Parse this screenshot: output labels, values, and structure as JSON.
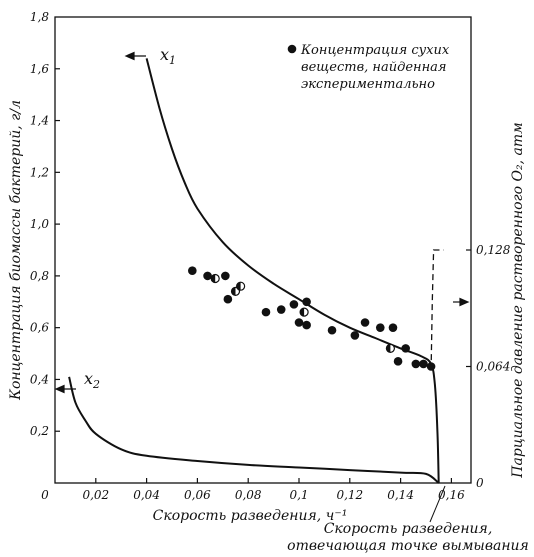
{
  "chart_data": {
    "type": "scatter",
    "xlabel": "Скорость разведения, ч⁻¹",
    "ylabel": "Концентрация биомассы бактерий, г/л",
    "ylabel_right": "Парциальное давление растворенного O₂, атм",
    "xlim": [
      0,
      0.16
    ],
    "ylim": [
      0,
      1.8
    ],
    "ylim_right": [
      0,
      0.256
    ],
    "x_ticks": [
      "0",
      "0,02",
      "0,04",
      "0,06",
      "0,08",
      "0,1",
      "0,12",
      "0,14",
      "0,16"
    ],
    "y_ticks": [
      "0,2",
      "0,4",
      "0,6",
      "0,8",
      "1,0",
      "1,2",
      "1,4",
      "1,6",
      "1,8"
    ],
    "y_ticks_right": [
      "0",
      "0,064",
      "0,128"
    ],
    "legend": {
      "label_lines": [
        "Концентрация сухих",
        "веществ, найденная",
        "экспериментально"
      ]
    },
    "annotation_lines": [
      "Скорость разведения,",
      "отвечающая точке вымывания"
    ],
    "series": [
      {
        "name": "x₁",
        "values": [
          [
            0.04,
            1.64
          ],
          [
            0.045,
            1.45
          ],
          [
            0.05,
            1.29
          ],
          [
            0.055,
            1.16
          ],
          [
            0.06,
            1.06
          ],
          [
            0.07,
            0.93
          ],
          [
            0.08,
            0.84
          ],
          [
            0.09,
            0.77
          ],
          [
            0.1,
            0.71
          ],
          [
            0.11,
            0.65
          ],
          [
            0.12,
            0.6
          ],
          [
            0.13,
            0.56
          ],
          [
            0.14,
            0.52
          ],
          [
            0.148,
            0.49
          ],
          [
            0.152,
            0.46
          ],
          [
            0.1535,
            0.38
          ],
          [
            0.1545,
            0.2
          ],
          [
            0.155,
            0.0
          ]
        ]
      },
      {
        "name": "x₂",
        "values": [
          [
            0.0095,
            0.41
          ],
          [
            0.012,
            0.31
          ],
          [
            0.016,
            0.24
          ],
          [
            0.02,
            0.19
          ],
          [
            0.03,
            0.13
          ],
          [
            0.04,
            0.105
          ],
          [
            0.06,
            0.085
          ],
          [
            0.08,
            0.07
          ],
          [
            0.1,
            0.06
          ],
          [
            0.12,
            0.05
          ],
          [
            0.14,
            0.04
          ],
          [
            0.15,
            0.035
          ],
          [
            0.155,
            0.0
          ]
        ]
      },
      {
        "name": "O₂",
        "values": [
          [
            0.152,
            0.062
          ],
          [
            0.1525,
            0.1
          ],
          [
            0.153,
            0.128
          ],
          [
            0.157,
            0.128
          ]
        ]
      }
    ],
    "points": [
      {
        "x": 0.058,
        "y": 0.82,
        "fill": "filled"
      },
      {
        "x": 0.064,
        "y": 0.8,
        "fill": "filled"
      },
      {
        "x": 0.067,
        "y": 0.79,
        "fill": "half"
      },
      {
        "x": 0.071,
        "y": 0.8,
        "fill": "filled"
      },
      {
        "x": 0.072,
        "y": 0.71,
        "fill": "filled"
      },
      {
        "x": 0.075,
        "y": 0.74,
        "fill": "half"
      },
      {
        "x": 0.077,
        "y": 0.76,
        "fill": "half"
      },
      {
        "x": 0.087,
        "y": 0.66,
        "fill": "filled"
      },
      {
        "x": 0.093,
        "y": 0.67,
        "fill": "filled"
      },
      {
        "x": 0.098,
        "y": 0.69,
        "fill": "filled"
      },
      {
        "x": 0.1,
        "y": 0.62,
        "fill": "filled"
      },
      {
        "x": 0.102,
        "y": 0.66,
        "fill": "half"
      },
      {
        "x": 0.103,
        "y": 0.61,
        "fill": "filled"
      },
      {
        "x": 0.103,
        "y": 0.7,
        "fill": "filled"
      },
      {
        "x": 0.113,
        "y": 0.59,
        "fill": "filled"
      },
      {
        "x": 0.122,
        "y": 0.57,
        "fill": "filled"
      },
      {
        "x": 0.126,
        "y": 0.62,
        "fill": "filled"
      },
      {
        "x": 0.132,
        "y": 0.6,
        "fill": "filled"
      },
      {
        "x": 0.137,
        "y": 0.6,
        "fill": "filled"
      },
      {
        "x": 0.136,
        "y": 0.52,
        "fill": "half"
      },
      {
        "x": 0.139,
        "y": 0.47,
        "fill": "filled"
      },
      {
        "x": 0.142,
        "y": 0.52,
        "fill": "filled"
      },
      {
        "x": 0.146,
        "y": 0.46,
        "fill": "filled"
      },
      {
        "x": 0.149,
        "y": 0.46,
        "fill": "filled"
      },
      {
        "x": 0.152,
        "y": 0.45,
        "fill": "filled"
      }
    ],
    "grid": false
  }
}
